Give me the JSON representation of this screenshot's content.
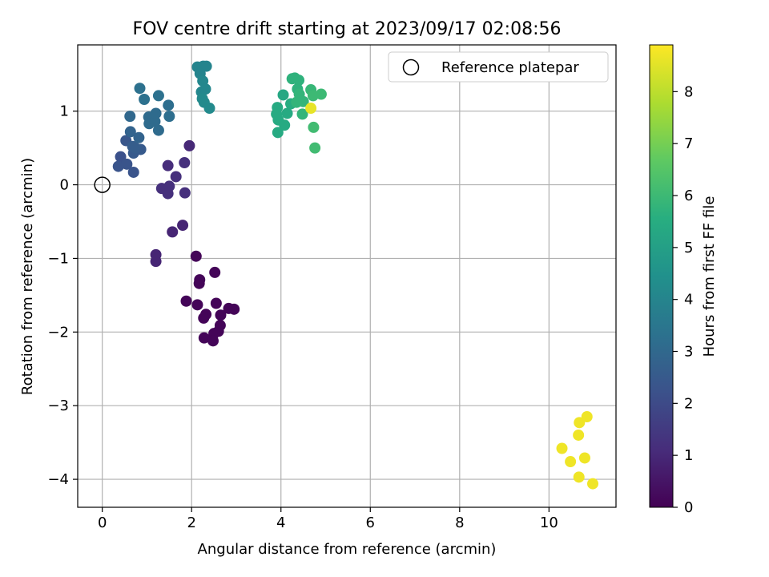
{
  "chart_data": {
    "type": "scatter",
    "title": "FOV centre drift starting at 2023/09/17 02:08:56",
    "xlabel": "Angular distance from reference (arcmin)",
    "ylabel": "Rotation from reference (arcmin)",
    "xlim": [
      -0.55,
      11.5
    ],
    "ylim": [
      -4.38,
      1.9
    ],
    "xticks": [
      0,
      2,
      4,
      6,
      8,
      10
    ],
    "yticks": [
      1,
      0,
      -1,
      -2,
      -3,
      -4
    ],
    "grid": true,
    "legend": {
      "position": "top-right",
      "entries": [
        "Reference platepar"
      ]
    },
    "reference_point": {
      "x": 0,
      "y": 0
    },
    "colorbar": {
      "label": "Hours from first FF file",
      "range": [
        0,
        8.9
      ],
      "ticks": [
        0,
        1,
        2,
        3,
        4,
        5,
        6,
        7,
        8
      ],
      "colormap": "viridis"
    },
    "points": [
      {
        "x": 2.1,
        "y": -0.97,
        "t": 0.1
      },
      {
        "x": 2.52,
        "y": -1.19,
        "t": 0.1
      },
      {
        "x": 2.18,
        "y": -1.29,
        "t": 0.1
      },
      {
        "x": 2.17,
        "y": -1.34,
        "t": 0.1
      },
      {
        "x": 1.88,
        "y": -1.58,
        "t": 0.1
      },
      {
        "x": 2.13,
        "y": -1.63,
        "t": 0.1
      },
      {
        "x": 2.55,
        "y": -1.61,
        "t": 0.1
      },
      {
        "x": 2.83,
        "y": -1.68,
        "t": 0.1
      },
      {
        "x": 2.95,
        "y": -1.69,
        "t": 0.1
      },
      {
        "x": 2.32,
        "y": -1.76,
        "t": 0.1
      },
      {
        "x": 2.27,
        "y": -1.81,
        "t": 0.1
      },
      {
        "x": 2.65,
        "y": -1.77,
        "t": 0.1
      },
      {
        "x": 2.64,
        "y": -1.91,
        "t": 0.1
      },
      {
        "x": 2.5,
        "y": -2.02,
        "t": 0.1
      },
      {
        "x": 2.6,
        "y": -1.99,
        "t": 0.1
      },
      {
        "x": 2.28,
        "y": -2.08,
        "t": 0.1
      },
      {
        "x": 2.48,
        "y": -2.12,
        "t": 0.1
      },
      {
        "x": 1.2,
        "y": -0.95,
        "t": 0.9
      },
      {
        "x": 1.2,
        "y": -1.04,
        "t": 0.9
      },
      {
        "x": 1.57,
        "y": -0.64,
        "t": 0.9
      },
      {
        "x": 1.8,
        "y": -0.55,
        "t": 0.9
      },
      {
        "x": 1.95,
        "y": 0.53,
        "t": 1.0
      },
      {
        "x": 1.47,
        "y": 0.26,
        "t": 1.1
      },
      {
        "x": 1.84,
        "y": 0.3,
        "t": 1.2
      },
      {
        "x": 1.65,
        "y": 0.11,
        "t": 1.2
      },
      {
        "x": 1.33,
        "y": -0.05,
        "t": 1.2
      },
      {
        "x": 1.5,
        "y": -0.02,
        "t": 1.2
      },
      {
        "x": 1.47,
        "y": -0.12,
        "t": 1.2
      },
      {
        "x": 1.85,
        "y": -0.11,
        "t": 1.2
      },
      {
        "x": 0.41,
        "y": 0.38,
        "t": 2.2
      },
      {
        "x": 0.36,
        "y": 0.25,
        "t": 2.3
      },
      {
        "x": 0.55,
        "y": 0.28,
        "t": 2.3
      },
      {
        "x": 0.7,
        "y": 0.17,
        "t": 2.3
      },
      {
        "x": 0.53,
        "y": 0.6,
        "t": 2.4
      },
      {
        "x": 0.7,
        "y": 0.43,
        "t": 2.5
      },
      {
        "x": 0.86,
        "y": 0.48,
        "t": 2.5
      },
      {
        "x": 0.68,
        "y": 0.52,
        "t": 2.6
      },
      {
        "x": 0.74,
        "y": 0.5,
        "t": 2.6
      },
      {
        "x": 0.63,
        "y": 0.72,
        "t": 2.8
      },
      {
        "x": 0.82,
        "y": 0.64,
        "t": 2.8
      },
      {
        "x": 0.62,
        "y": 0.93,
        "t": 3.0
      },
      {
        "x": 1.04,
        "y": 0.92,
        "t": 3.1
      },
      {
        "x": 1.05,
        "y": 0.83,
        "t": 3.1
      },
      {
        "x": 1.18,
        "y": 0.86,
        "t": 3.1
      },
      {
        "x": 1.26,
        "y": 0.74,
        "t": 3.1
      },
      {
        "x": 1.2,
        "y": 0.97,
        "t": 3.1
      },
      {
        "x": 1.5,
        "y": 0.93,
        "t": 3.2
      },
      {
        "x": 1.48,
        "y": 1.08,
        "t": 3.2
      },
      {
        "x": 1.26,
        "y": 1.21,
        "t": 3.3
      },
      {
        "x": 0.94,
        "y": 1.16,
        "t": 3.3
      },
      {
        "x": 0.84,
        "y": 1.31,
        "t": 3.3
      },
      {
        "x": 2.13,
        "y": 1.6,
        "t": 4.0
      },
      {
        "x": 2.26,
        "y": 1.61,
        "t": 4.0
      },
      {
        "x": 2.33,
        "y": 1.61,
        "t": 4.0
      },
      {
        "x": 2.19,
        "y": 1.51,
        "t": 4.0
      },
      {
        "x": 2.25,
        "y": 1.41,
        "t": 4.1
      },
      {
        "x": 2.22,
        "y": 1.26,
        "t": 4.1
      },
      {
        "x": 2.31,
        "y": 1.3,
        "t": 4.1
      },
      {
        "x": 2.24,
        "y": 1.17,
        "t": 4.2
      },
      {
        "x": 2.28,
        "y": 1.12,
        "t": 4.2
      },
      {
        "x": 2.4,
        "y": 1.04,
        "t": 4.2
      },
      {
        "x": 4.05,
        "y": 1.22,
        "t": 5.3
      },
      {
        "x": 3.92,
        "y": 1.05,
        "t": 5.4
      },
      {
        "x": 3.9,
        "y": 0.96,
        "t": 5.4
      },
      {
        "x": 3.94,
        "y": 0.88,
        "t": 5.4
      },
      {
        "x": 4.14,
        "y": 0.97,
        "t": 5.4
      },
      {
        "x": 4.08,
        "y": 0.81,
        "t": 5.4
      },
      {
        "x": 3.93,
        "y": 0.71,
        "t": 5.4
      },
      {
        "x": 4.22,
        "y": 1.1,
        "t": 5.5
      },
      {
        "x": 4.25,
        "y": 1.44,
        "t": 5.7
      },
      {
        "x": 4.31,
        "y": 1.45,
        "t": 5.7
      },
      {
        "x": 4.4,
        "y": 1.42,
        "t": 5.7
      },
      {
        "x": 4.37,
        "y": 1.3,
        "t": 5.7
      },
      {
        "x": 4.41,
        "y": 1.23,
        "t": 5.8
      },
      {
        "x": 4.35,
        "y": 1.12,
        "t": 5.8
      },
      {
        "x": 4.5,
        "y": 1.13,
        "t": 5.8
      },
      {
        "x": 4.48,
        "y": 0.96,
        "t": 5.8
      },
      {
        "x": 4.67,
        "y": 1.29,
        "t": 5.9
      },
      {
        "x": 4.72,
        "y": 1.21,
        "t": 6.0
      },
      {
        "x": 4.9,
        "y": 1.23,
        "t": 6.0
      },
      {
        "x": 4.73,
        "y": 0.78,
        "t": 6.1
      },
      {
        "x": 4.76,
        "y": 0.5,
        "t": 6.1
      },
      {
        "x": 4.67,
        "y": 1.04,
        "t": 8.6
      },
      {
        "x": 10.29,
        "y": -3.58,
        "t": 8.7
      },
      {
        "x": 10.48,
        "y": -3.76,
        "t": 8.7
      },
      {
        "x": 10.68,
        "y": -3.23,
        "t": 8.7
      },
      {
        "x": 10.85,
        "y": -3.15,
        "t": 8.7
      },
      {
        "x": 10.66,
        "y": -3.4,
        "t": 8.7
      },
      {
        "x": 10.8,
        "y": -3.71,
        "t": 8.7
      },
      {
        "x": 10.67,
        "y": -3.97,
        "t": 8.7
      },
      {
        "x": 10.98,
        "y": -4.06,
        "t": 8.7
      }
    ]
  }
}
